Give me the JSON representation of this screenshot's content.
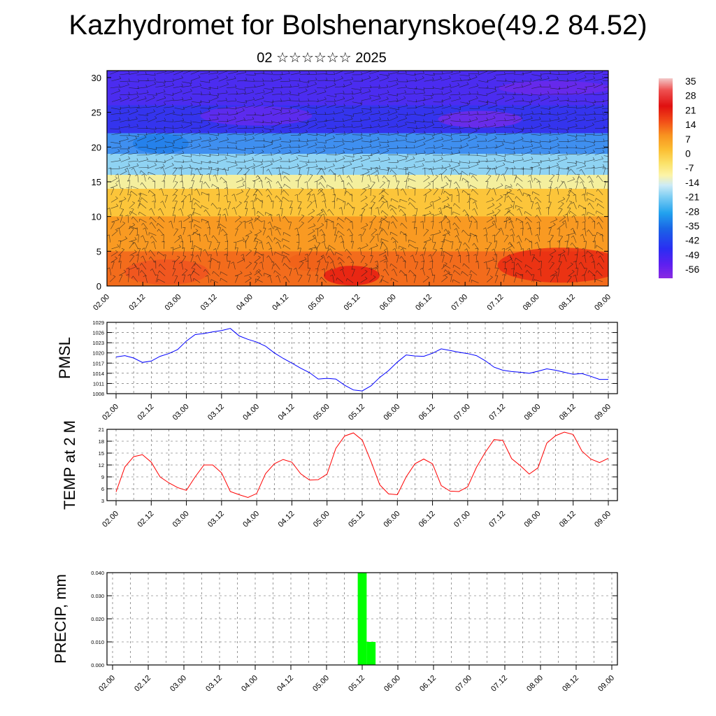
{
  "title": "Kazhydromet for Bolshenarynskoe(49.2 84.52)",
  "subtitle": "02 ☆☆☆☆☆☆ 2025",
  "time_labels": [
    "02.00",
    "02.12",
    "03.00",
    "03.12",
    "04.00",
    "04.12",
    "05.00",
    "05.12",
    "06.00",
    "06.12",
    "07.00",
    "07.12",
    "08.00",
    "08.12",
    "09.00"
  ],
  "chart_data": [
    {
      "type": "heatmap",
      "name": "temperature-wind-cross-section",
      "y_ticks": [
        0,
        5,
        10,
        15,
        20,
        25,
        30
      ],
      "ylim": [
        0,
        31
      ],
      "colorbar": {
        "labels": [
          "35",
          "28",
          "21",
          "14",
          "7",
          "0",
          "-7",
          "-14",
          "-21",
          "-28",
          "-35",
          "-42",
          "-49",
          "-56"
        ],
        "range": [
          -63,
          38
        ],
        "stops": [
          {
            "v": 38,
            "color": "#f2c8c8"
          },
          {
            "v": 32,
            "color": "#ee5050"
          },
          {
            "v": 24,
            "color": "#e01010"
          },
          {
            "v": 16,
            "color": "#f25018"
          },
          {
            "v": 9,
            "color": "#f89420"
          },
          {
            "v": 2,
            "color": "#fbbe32"
          },
          {
            "v": -5,
            "color": "#fbe26a"
          },
          {
            "v": -11,
            "color": "#fcf4a8"
          },
          {
            "v": -16,
            "color": "#cdebf6"
          },
          {
            "v": -22,
            "color": "#7ccdf3"
          },
          {
            "v": -30,
            "color": "#22a2ee"
          },
          {
            "v": -38,
            "color": "#1a64e6"
          },
          {
            "v": -48,
            "color": "#2a2ef2"
          },
          {
            "v": -56,
            "color": "#5d1ff0"
          },
          {
            "v": -63,
            "color": "#8a2be2"
          }
        ]
      },
      "zone_bands": [
        {
          "from": 0,
          "to": 5,
          "color": "#f36c1c"
        },
        {
          "from": 5,
          "to": 10,
          "color": "#f99a22"
        },
        {
          "from": 10,
          "to": 14,
          "color": "#fcc53a"
        },
        {
          "from": 14,
          "to": 16,
          "color": "#f4ef9e"
        },
        {
          "from": 16,
          "to": 19,
          "color": "#8fd3f3"
        },
        {
          "from": 19,
          "to": 22,
          "color": "#3f8ff0"
        },
        {
          "from": 22,
          "to": 26,
          "color": "#3434ee"
        },
        {
          "from": 26,
          "to": 31,
          "color": "#4b2cf0"
        }
      ]
    },
    {
      "type": "line",
      "name": "PMSL",
      "ylabel": "PMSL",
      "color": "#0000ff",
      "y_ticks": [
        1008,
        1011,
        1014,
        1017,
        1020,
        1023,
        1026,
        1029
      ],
      "ylim": [
        1008,
        1029
      ],
      "x_step_hours": 3,
      "values": [
        1018.8,
        1019.2,
        1018.5,
        1017.2,
        1017.6,
        1019.0,
        1019.8,
        1021.0,
        1023.5,
        1025.4,
        1025.7,
        1026.2,
        1026.6,
        1027.2,
        1025.0,
        1024.0,
        1023.2,
        1022.0,
        1020.0,
        1018.4,
        1017.0,
        1015.5,
        1014.2,
        1012.3,
        1012.5,
        1012.3,
        1010.5,
        1009.1,
        1008.8,
        1010.3,
        1012.8,
        1014.8,
        1017.3,
        1019.4,
        1019.1,
        1019.0,
        1019.9,
        1021.2,
        1020.7,
        1020.2,
        1019.8,
        1019.2,
        1017.7,
        1015.8,
        1014.9,
        1014.5,
        1014.3,
        1014.0,
        1014.6,
        1015.3,
        1014.9,
        1014.3,
        1013.7,
        1013.9,
        1013.1,
        1012.2,
        1012.2
      ]
    },
    {
      "type": "line",
      "name": "TEMP at 2 M",
      "ylabel": "TEMP at 2 M",
      "color": "#ff0000",
      "y_ticks": [
        3,
        6,
        9,
        12,
        15,
        18,
        21
      ],
      "ylim": [
        3,
        21
      ],
      "x_step_hours": 3,
      "values": [
        5.2,
        11.5,
        14.1,
        14.6,
        12.7,
        9.0,
        7.5,
        6.3,
        5.6,
        9.0,
        12.0,
        12.0,
        10.0,
        5.3,
        4.5,
        3.8,
        4.8,
        9.8,
        12.3,
        13.4,
        12.7,
        9.8,
        8.2,
        8.3,
        9.7,
        16.2,
        19.3,
        20.1,
        18.3,
        12.9,
        7.0,
        4.7,
        4.5,
        9.0,
        12.3,
        13.5,
        12.3,
        6.8,
        5.4,
        5.3,
        6.5,
        11.4,
        15.2,
        18.4,
        18.2,
        13.6,
        11.8,
        9.7,
        11.3,
        17.5,
        19.4,
        20.3,
        19.7,
        15.5,
        13.5,
        12.6,
        13.7
      ]
    },
    {
      "type": "bar",
      "name": "PRECIP, mm",
      "ylabel": "PRECIP, mm",
      "color": "#00ff00",
      "y_ticks": [
        "0.000",
        "0.010",
        "0.020",
        "0.030",
        "0.040"
      ],
      "ylim": [
        0,
        0.04
      ],
      "bars": [
        {
          "x_hours": 84,
          "value": 0.04
        },
        {
          "x_hours": 87,
          "value": 0.01
        }
      ]
    }
  ]
}
